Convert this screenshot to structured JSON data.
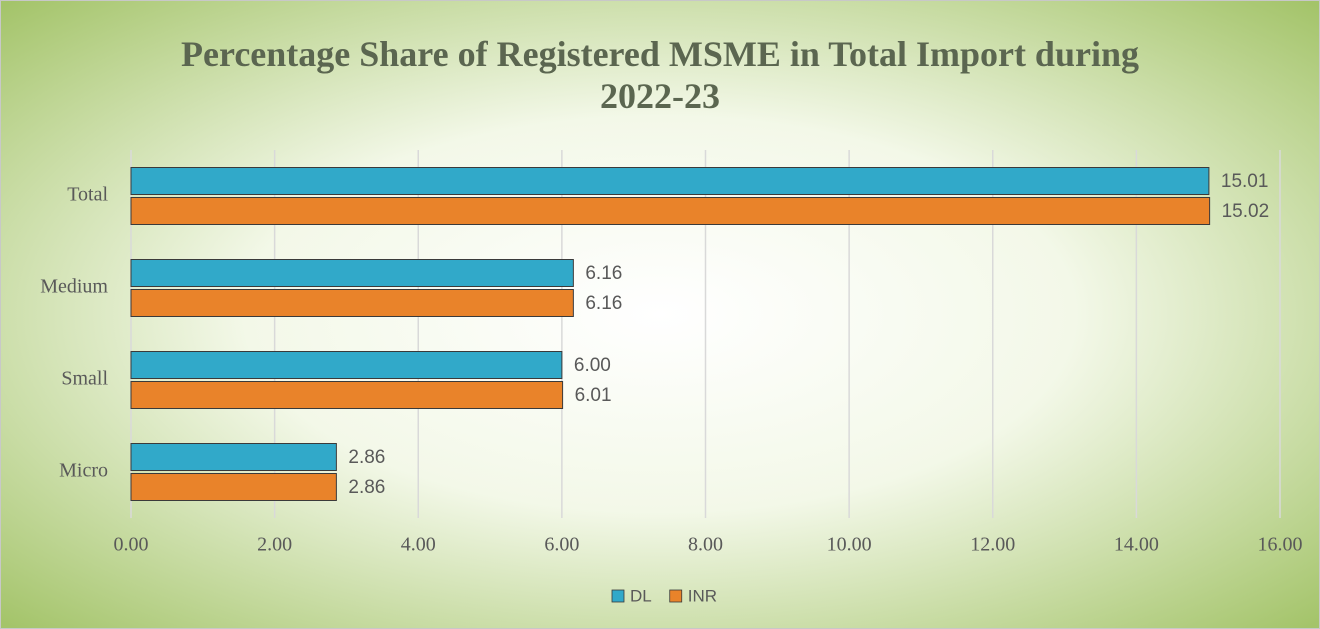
{
  "chart_data": {
    "type": "hbar",
    "title": "Percentage Share of Registered MSME in Total Import during 2022-23",
    "categories": [
      "Total",
      "Medium",
      "Small",
      "Micro"
    ],
    "series": [
      {
        "name": "DL",
        "color": "#31a9c9",
        "values": [
          15.01,
          6.16,
          6.0,
          2.86
        ],
        "value_labels": [
          "15.01",
          "6.16",
          "6.00",
          "2.86"
        ]
      },
      {
        "name": "INR",
        "color": "#e9832a",
        "values": [
          15.02,
          6.16,
          6.01,
          2.86
        ],
        "value_labels": [
          "15.02",
          "6.16",
          "6.01",
          "2.86"
        ]
      }
    ],
    "xlim": [
      0,
      16
    ],
    "xticks": [
      {
        "value": 0,
        "label": "0.00"
      },
      {
        "value": 2,
        "label": "2.00"
      },
      {
        "value": 4,
        "label": "4.00"
      },
      {
        "value": 6,
        "label": "6.00"
      },
      {
        "value": 8,
        "label": "8.00"
      },
      {
        "value": 10,
        "label": "10.00"
      },
      {
        "value": 12,
        "label": "12.00"
      },
      {
        "value": 14,
        "label": "14.00"
      },
      {
        "value": 16,
        "label": "16.00"
      }
    ],
    "grid": true,
    "legend": "bottom"
  }
}
